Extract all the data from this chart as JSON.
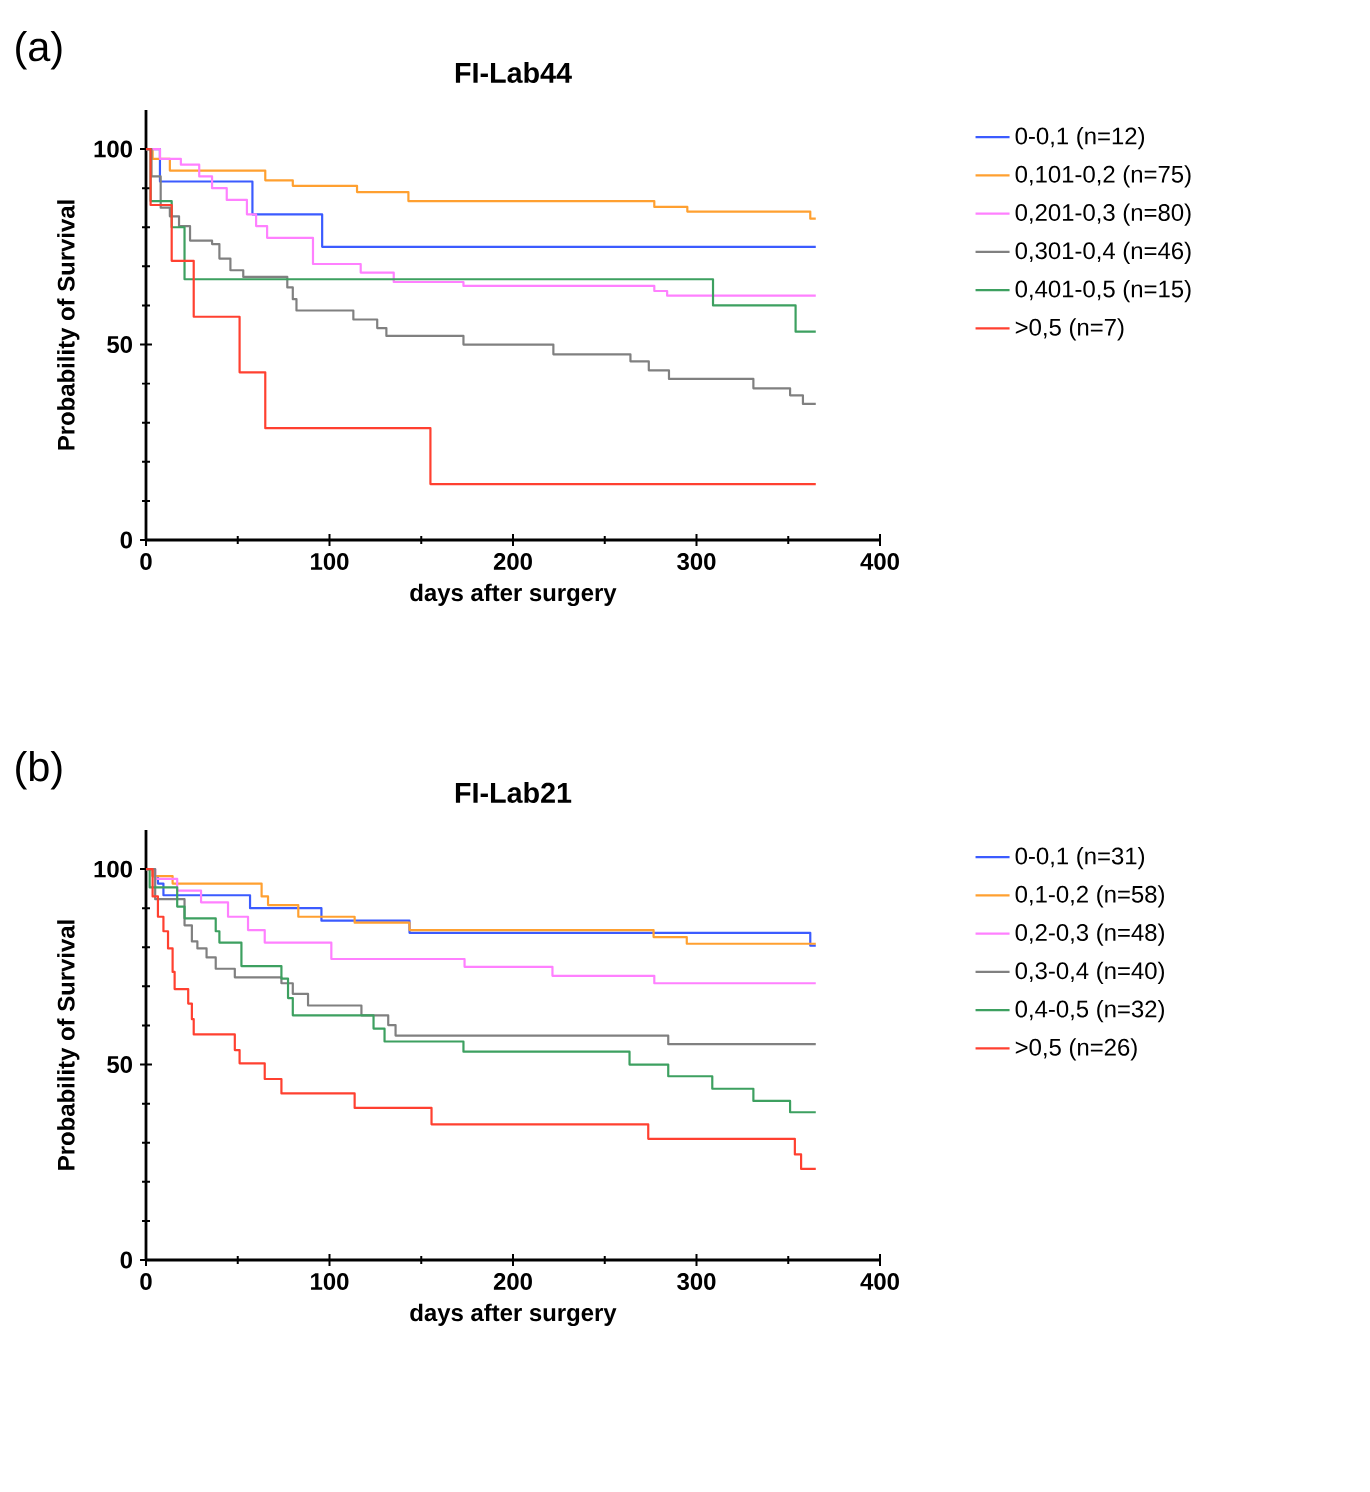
{
  "chart_data": [
    {
      "type": "step",
      "title": "FI-Lab44",
      "xlabel": "days after surgery",
      "ylabel": "Probability of Survival",
      "annotations": [
        "(a)"
      ],
      "xlim": [
        0,
        400
      ],
      "ylim": [
        0,
        110
      ],
      "xticks": [
        0,
        100,
        200,
        300,
        400
      ],
      "yticks": [
        0,
        50,
        100
      ],
      "legend": "right",
      "series": [
        {
          "name": "0-0,1 (n=12)",
          "color": "#3b5bff",
          "x": [
            0,
            7.6,
            58,
            96,
            365
          ],
          "values": [
            100,
            91.7,
            83.3,
            75,
            75
          ]
        },
        {
          "name": "0,101-0,2 (n=75)",
          "color": "#ffa030",
          "x": [
            0,
            3.6,
            13,
            65,
            80,
            115,
            143,
            277,
            295,
            362,
            365
          ],
          "values": [
            100,
            97.5,
            94.5,
            92,
            90.6,
            89,
            86.7,
            85.2,
            84,
            82.2,
            82.2
          ]
        },
        {
          "name": "0,201-0,3 (n=80)",
          "color": "#ff80ff",
          "x": [
            0,
            7.6,
            19,
            29,
            36,
            44,
            55,
            60,
            66,
            91,
            117,
            135,
            173,
            277,
            284,
            365
          ],
          "values": [
            100,
            97.5,
            96,
            93,
            90,
            87,
            83.3,
            80.3,
            77.3,
            70.6,
            68.4,
            66,
            65,
            63.7,
            62.5,
            62.5
          ]
        },
        {
          "name": "0,301-0,4 (n=46)",
          "color": "#808080",
          "x": [
            0,
            3,
            8,
            13,
            18,
            24,
            36,
            40,
            46,
            53,
            77,
            80,
            82,
            113,
            126,
            131,
            173,
            222,
            264,
            274,
            285,
            331,
            351,
            358,
            365
          ],
          "values": [
            100,
            93,
            85,
            82.8,
            80.3,
            76.6,
            75.7,
            72,
            69,
            67.3,
            64.6,
            61.6,
            58.7,
            56.4,
            54.2,
            52.2,
            50,
            47.5,
            45.7,
            43.4,
            41.2,
            38.8,
            37,
            34.8,
            34.8
          ]
        },
        {
          "name": "0,401-0,5 (n=15)",
          "color": "#3da060",
          "x": [
            0,
            2.5,
            14,
            21,
            309,
            354,
            365
          ],
          "values": [
            100,
            86.7,
            80,
            66.7,
            60,
            53.3,
            53.3
          ]
        },
        {
          "name": ">0,5 (n=7)",
          "color": "#ff4030",
          "x": [
            0,
            2.5,
            14,
            26,
            51,
            65,
            155,
            365
          ],
          "values": [
            100,
            85.7,
            71.4,
            57.1,
            42.9,
            28.6,
            14.3,
            14.3
          ]
        }
      ]
    },
    {
      "type": "step",
      "title": "FI-Lab21",
      "xlabel": "days after surgery",
      "ylabel": "Probability of Survival",
      "annotations": [
        "(b)"
      ],
      "xlim": [
        0,
        400
      ],
      "ylim": [
        0,
        110
      ],
      "xticks": [
        0,
        100,
        200,
        300,
        400
      ],
      "yticks": [
        0,
        50,
        100
      ],
      "legend": "right",
      "series": [
        {
          "name": "0-0,1 (n=31)",
          "color": "#3b5bff",
          "x": [
            0,
            3.6,
            6.5,
            9.5,
            56.7,
            95.6,
            143.6,
            362,
            365
          ],
          "values": [
            100,
            98.2,
            96.3,
            93.3,
            90,
            86.8,
            83.7,
            80.4,
            80.4
          ]
        },
        {
          "name": "0,1-0,2 (n=58)",
          "color": "#ffa030",
          "x": [
            0,
            3.6,
            14.5,
            63,
            66.5,
            83,
            113.7,
            143.6,
            276.6,
            294.7,
            365
          ],
          "values": [
            100,
            98.2,
            96.3,
            93,
            90.8,
            87.8,
            86.3,
            84.4,
            82.6,
            80.9,
            80.9
          ]
        },
        {
          "name": "0,2-0,3 (n=48)",
          "color": "#ff80ff",
          "x": [
            0,
            5,
            17,
            30,
            44.7,
            55.6,
            64.7,
            101,
            173.6,
            221.5,
            277,
            365
          ],
          "values": [
            100,
            97.5,
            94.5,
            91.5,
            87.8,
            84.4,
            81.2,
            77,
            75,
            72.7,
            70.8,
            70.8
          ]
        },
        {
          "name": "0,3-0,4 (n=40)",
          "color": "#808080",
          "x": [
            0,
            5,
            21,
            25,
            28,
            33,
            38,
            48.4,
            73.8,
            80,
            88.3,
            117.4,
            132,
            136,
            284.6,
            365
          ],
          "values": [
            100,
            92.3,
            85.6,
            81.5,
            79.7,
            77.4,
            74.5,
            72.3,
            70.8,
            68.1,
            65.1,
            62.6,
            60.1,
            57.4,
            55.2,
            55.2
          ]
        },
        {
          "name": "0,4-0,5 (n=32)",
          "color": "#3da060",
          "x": [
            0,
            2,
            17,
            21,
            38,
            40,
            52,
            73.8,
            77.4,
            80,
            124,
            130,
            173,
            263.5,
            284.6,
            308.6,
            331,
            351,
            365
          ],
          "values": [
            100,
            95.3,
            90.4,
            87.4,
            84.1,
            81.2,
            75.2,
            72,
            67,
            62.6,
            59.2,
            55.9,
            53.3,
            50,
            47,
            43.8,
            40.7,
            37.8,
            37.8
          ]
        },
        {
          "name": ">0,5 (n=26)",
          "color": "#ff4030",
          "x": [
            0,
            3.6,
            6.5,
            9.5,
            12,
            14.5,
            15.6,
            23,
            25,
            26,
            48.4,
            51,
            64.7,
            73.8,
            113.7,
            155.6,
            273.7,
            353.6,
            357,
            365
          ],
          "values": [
            100,
            93,
            87.8,
            84.1,
            79.7,
            73.7,
            69.3,
            65.6,
            61.6,
            57.7,
            53.7,
            50.3,
            46.3,
            42.6,
            38.9,
            34.7,
            31,
            27,
            23.3,
            23.3
          ]
        }
      ]
    }
  ]
}
